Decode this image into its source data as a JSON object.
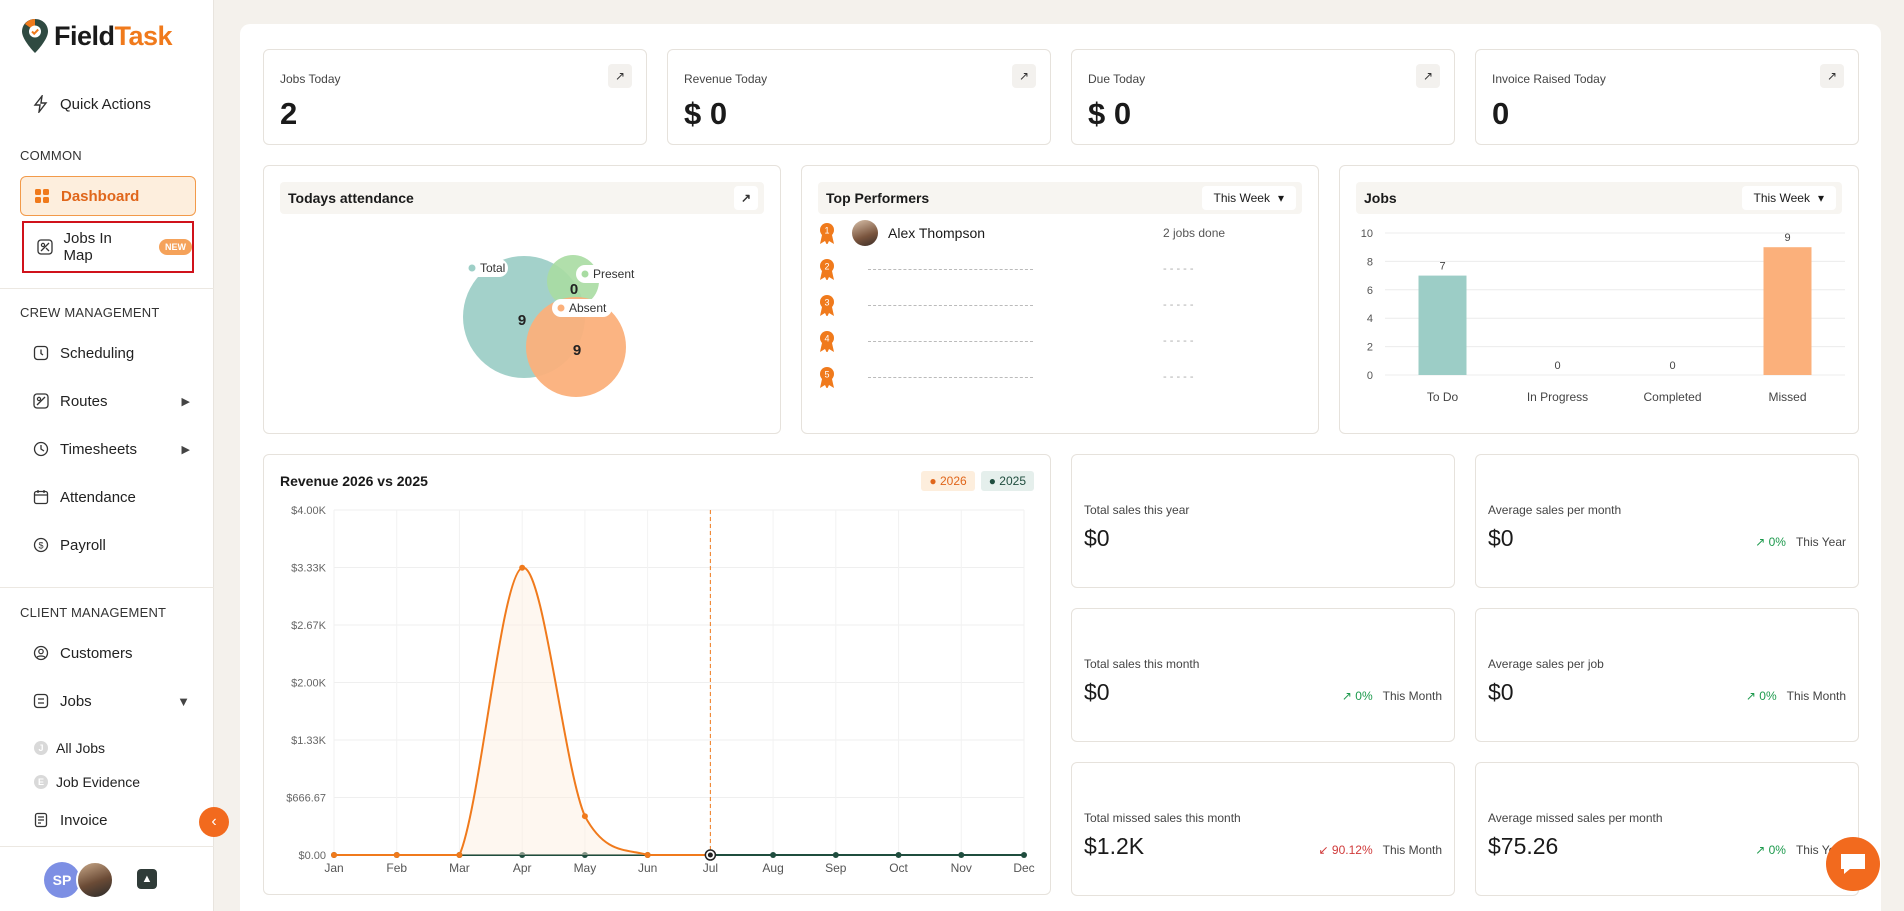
{
  "app": {
    "logo_part1": "Field",
    "logo_part2": "Task"
  },
  "sidebar": {
    "quick_actions": "Quick Actions",
    "section_common": "COMMON",
    "dashboard": "Dashboard",
    "jobs_in_map": "Jobs In Map",
    "new_badge": "NEW",
    "section_crew": "CREW MANAGEMENT",
    "scheduling": "Scheduling",
    "routes": "Routes",
    "timesheets": "Timesheets",
    "attendance": "Attendance",
    "payroll": "Payroll",
    "section_client": "CLIENT MANAGEMENT",
    "customers": "Customers",
    "jobs": "Jobs",
    "all_jobs": "All Jobs",
    "all_jobs_letter": "J",
    "job_evidence": "Job Evidence",
    "job_evidence_letter": "E",
    "invoice": "Invoice",
    "user_initials": "SP"
  },
  "stats": [
    {
      "label": "Jobs Today",
      "value": "2"
    },
    {
      "label": "Revenue Today",
      "value": "$ 0"
    },
    {
      "label": "Due Today",
      "value": "$ 0"
    },
    {
      "label": "Invoice Raised Today",
      "value": "0"
    }
  ],
  "attendance": {
    "title": "Todays attendance",
    "total_label": "Total",
    "total_value": "9",
    "present_label": "Present",
    "present_value": "0",
    "absent_label": "Absent",
    "absent_value": "9"
  },
  "performers": {
    "title": "Top Performers",
    "period": "This Week",
    "top_name": "Alex Thompson",
    "top_jobs": "2 jobs done",
    "ranks": [
      "1",
      "2",
      "3",
      "4",
      "5"
    ],
    "placeholder": "- - - - -"
  },
  "jobs_chart": {
    "title": "Jobs",
    "period": "This Week",
    "colors": {
      "To Do": "#9ccdc6",
      "In Progress": "#9ccdc6",
      "Completed": "#9ccdc6",
      "Missed": "#fbb07b"
    }
  },
  "revenue": {
    "title": "Revenue 2026 vs 2025",
    "legend_2026": "2026",
    "legend_2025": "2025",
    "color_2026": "#f07a1c",
    "color_2025": "#1f4d3e"
  },
  "sales": [
    {
      "label": "Total sales this year",
      "value": "$0",
      "trend": "",
      "period": ""
    },
    {
      "label": "Average sales per month",
      "value": "$0",
      "trend": "↗ 0%",
      "period": "This Year",
      "dir": "up"
    },
    {
      "label": "Total sales this month",
      "value": "$0",
      "trend": "↗ 0%",
      "period": "This Month",
      "dir": "up"
    },
    {
      "label": "Average sales per job",
      "value": "$0",
      "trend": "↗ 0%",
      "period": "This Month",
      "dir": "up"
    },
    {
      "label": "Total missed sales this month",
      "value": "$1.2K",
      "trend": "↙ 90.12%",
      "period": "This Month",
      "dir": "down"
    },
    {
      "label": "Average missed sales per month",
      "value": "$75.26",
      "trend": "↗ 0%",
      "period": "This Year",
      "dir": "up"
    }
  ],
  "chart_data": [
    {
      "type": "bar",
      "title": "Jobs",
      "categories": [
        "To Do",
        "In Progress",
        "Completed",
        "Missed"
      ],
      "values": [
        7,
        0,
        0,
        9
      ],
      "ylim": [
        0,
        10
      ],
      "yticks": [
        "0",
        "2",
        "4",
        "6",
        "8",
        "10"
      ],
      "grid": true
    },
    {
      "type": "line",
      "title": "Revenue 2026 vs 2025",
      "categories": [
        "Jan",
        "Feb",
        "Mar",
        "Apr",
        "May",
        "Jun",
        "Jul",
        "Aug",
        "Sep",
        "Oct",
        "Nov",
        "Dec"
      ],
      "series": [
        {
          "name": "2026",
          "values": [
            0,
            0,
            0,
            3330,
            450,
            0,
            0,
            null,
            null,
            null,
            null,
            null
          ]
        },
        {
          "name": "2025",
          "values": [
            0,
            0,
            0,
            0,
            0,
            0,
            0,
            0,
            0,
            0,
            0,
            0
          ]
        }
      ],
      "yticks": [
        "$0.00",
        "$666.67",
        "$1.33K",
        "$2.00K",
        "$2.67K",
        "$3.33K",
        "$4.00K"
      ],
      "ylim": [
        0,
        4000
      ],
      "current_marker": "Jul",
      "legend": "top-right",
      "grid": true
    },
    {
      "type": "scatter",
      "title": "Todays attendance",
      "series": [
        {
          "name": "Total",
          "value": 9
        },
        {
          "name": "Present",
          "value": 0
        },
        {
          "name": "Absent",
          "value": 9
        }
      ]
    }
  ]
}
